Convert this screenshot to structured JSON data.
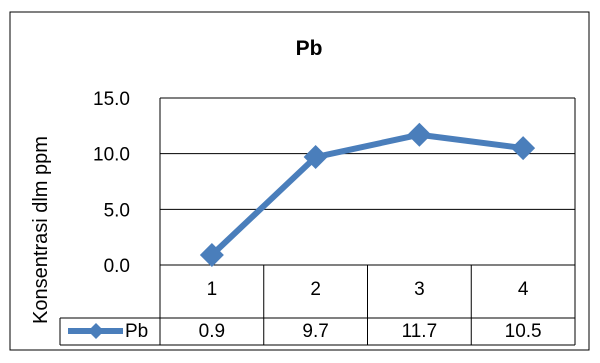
{
  "chart_data": {
    "type": "line",
    "title": "Pb",
    "ylabel": "Konsentrasi dlm ppm",
    "xlabel": "",
    "categories": [
      "1",
      "2",
      "3",
      "4"
    ],
    "series": [
      {
        "name": "Pb",
        "values": [
          0.9,
          9.7,
          11.7,
          10.5
        ],
        "color": "#4A7EBB",
        "marker": "diamond"
      }
    ],
    "ylim": [
      0,
      15
    ],
    "yticks": [
      "0.0",
      "5.0",
      "10.0",
      "15.0"
    ],
    "table_values": [
      "0.9",
      "9.7",
      "11.7",
      "10.5"
    ],
    "grid": true,
    "legend": "data-table"
  }
}
